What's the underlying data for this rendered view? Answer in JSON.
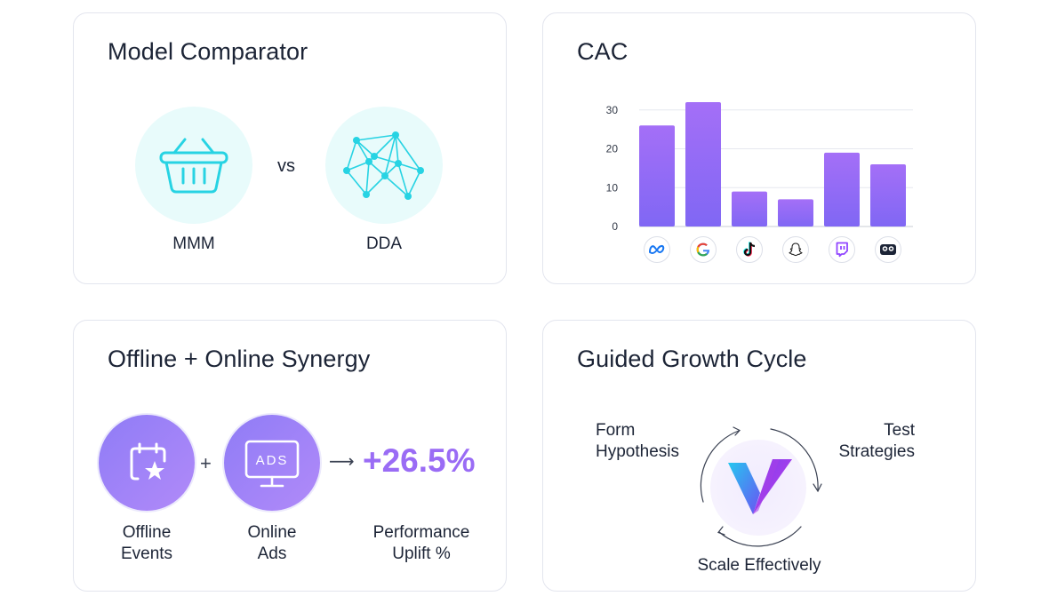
{
  "model_card": {
    "title": "Model Comparator",
    "left_label": "MMM",
    "vs_label": "vs",
    "right_label": "DDA",
    "left_icon": "basket-icon",
    "right_icon": "network-icon",
    "accent_color": "#27d3e3"
  },
  "cac_card": {
    "title": "CAC",
    "platform_icons": [
      "meta-icon",
      "google-icon",
      "tiktok-icon",
      "snapchat-icon",
      "twitch-icon",
      "other-channel-icon"
    ]
  },
  "chart_data": {
    "type": "bar",
    "title": "CAC",
    "categories": [
      "Meta",
      "Google",
      "TikTok",
      "Snapchat",
      "Twitch",
      "Other"
    ],
    "values": [
      26,
      32,
      9,
      7,
      19,
      16
    ],
    "ylim": [
      0,
      32
    ],
    "yticks": [
      "0",
      "10",
      "20",
      "30"
    ],
    "grid": true,
    "bar_gradient": [
      "#a46ff7",
      "#8067f4"
    ]
  },
  "synergy_card": {
    "title": "Offline + Online Synergy",
    "offline_label_1": "Offline",
    "offline_label_2": "Events",
    "online_label_1": "Online",
    "online_label_2": "Ads",
    "ads_text": "ADS",
    "plus": "+",
    "arrow": "⟶",
    "uplift_value": "+26.5%",
    "uplift_label_1": "Performance",
    "uplift_label_2": "Uplift %"
  },
  "growth_card": {
    "title": "Guided Growth Cycle",
    "form_1": "Form",
    "form_2": "Hypothesis",
    "test_1": "Test",
    "test_2": "Strategies",
    "scale": "Scale Effectively",
    "center_icon": "brand-v-logo-icon"
  }
}
